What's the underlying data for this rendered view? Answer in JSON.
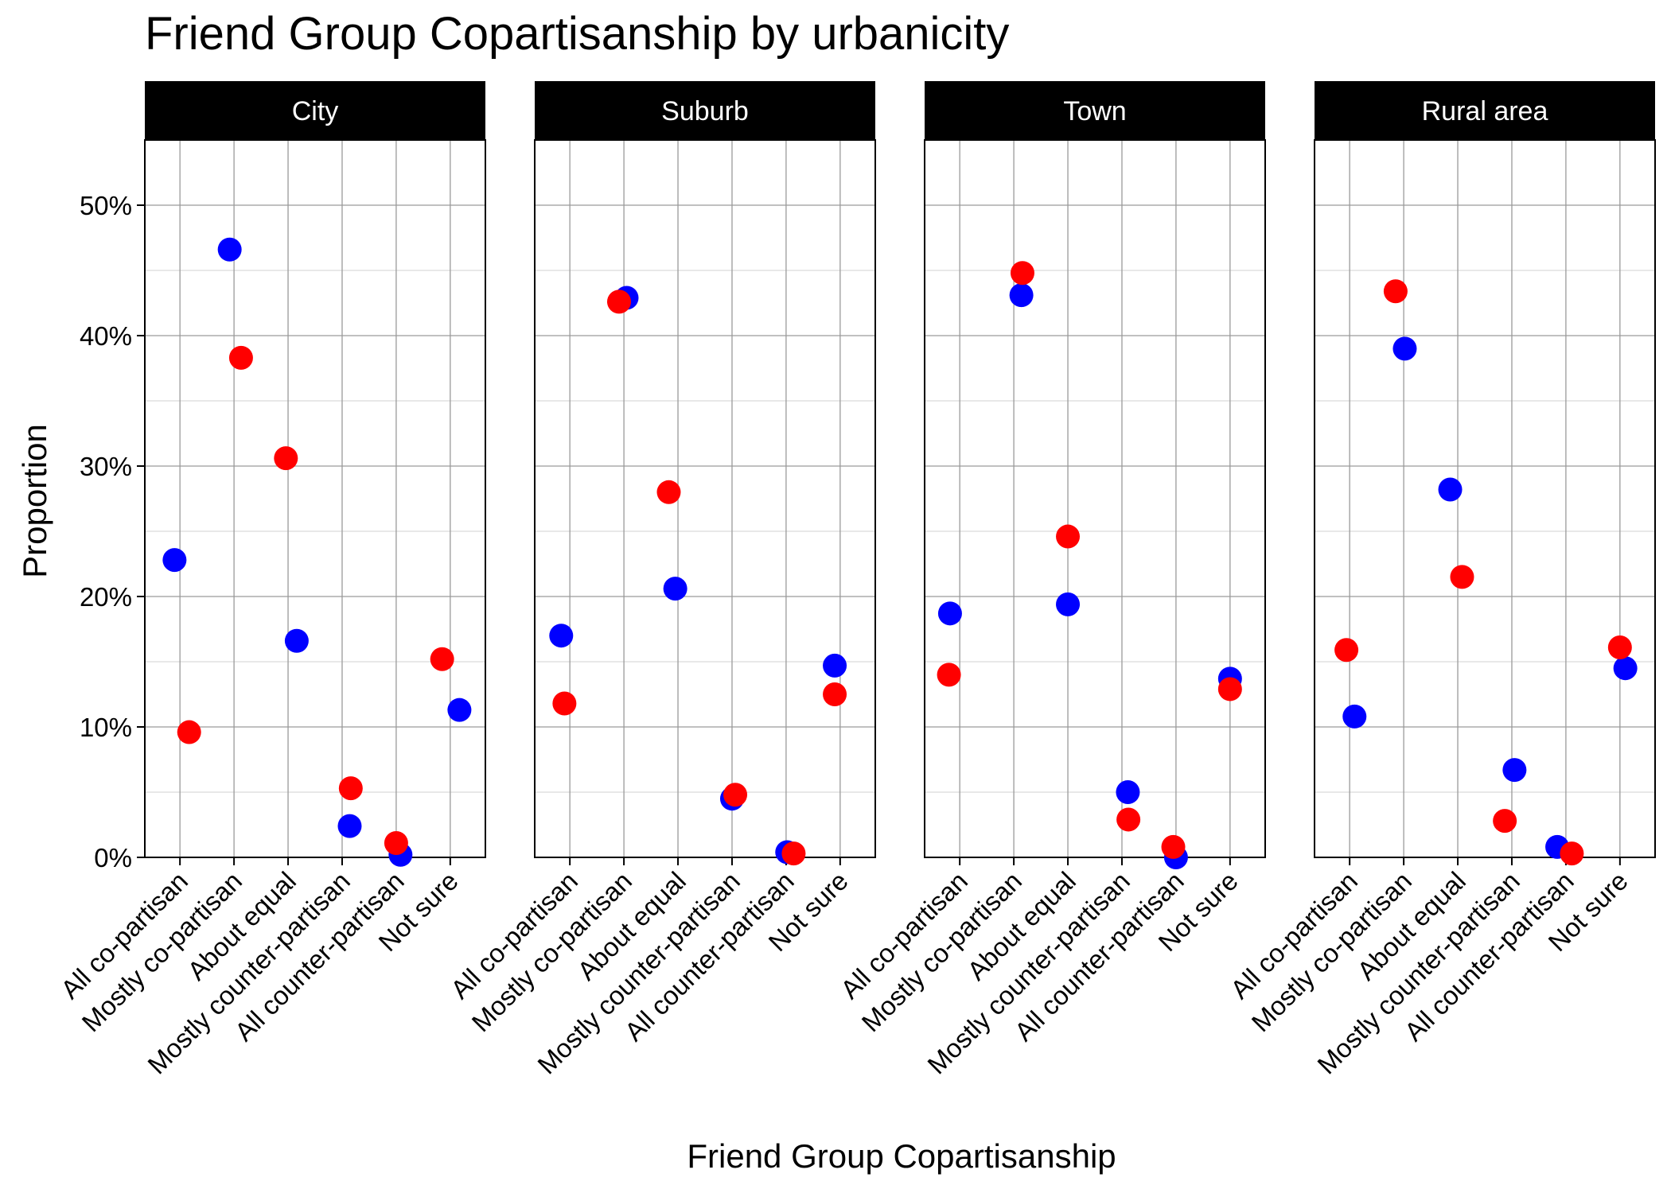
{
  "chart_data": {
    "type": "scatter",
    "title": "Friend Group Copartisanship by urbanicity",
    "xlabel": "Friend Group Copartisanship",
    "ylabel": "Proportion",
    "ylim": [
      0,
      0.55
    ],
    "y_ticks": [
      0,
      0.1,
      0.2,
      0.3,
      0.4,
      0.5
    ],
    "y_tick_labels": [
      "0%",
      "10%",
      "20%",
      "30%",
      "40%",
      "50%"
    ],
    "grid": true,
    "legend": "none",
    "categories": [
      "All co-partisan",
      "Mostly co-partisan",
      "About equal",
      "Mostly counter-partisan",
      "All counter-partisan",
      "Not sure"
    ],
    "series_colors": [
      "#0000ff",
      "#ff0000"
    ],
    "panels": [
      {
        "label": "City",
        "series": [
          {
            "color": "#0000ff",
            "values": [
              0.228,
              0.466,
              0.166,
              0.024,
              0.002,
              0.113
            ],
            "jitter": [
              -0.1,
              -0.08,
              0.16,
              0.14,
              0.08,
              0.17
            ]
          },
          {
            "color": "#ff0000",
            "values": [
              0.096,
              0.383,
              0.306,
              0.053,
              0.011,
              0.152
            ],
            "jitter": [
              0.17,
              0.13,
              -0.04,
              0.16,
              0.0,
              -0.15
            ]
          }
        ]
      },
      {
        "label": "Suburb",
        "series": [
          {
            "color": "#0000ff",
            "values": [
              0.17,
              0.429,
              0.206,
              0.045,
              0.004,
              0.147
            ],
            "jitter": [
              -0.16,
              0.05,
              -0.05,
              0.0,
              0.02,
              -0.1
            ]
          },
          {
            "color": "#ff0000",
            "values": [
              0.118,
              0.426,
              0.28,
              0.048,
              0.003,
              0.125
            ],
            "jitter": [
              -0.1,
              -0.09,
              -0.17,
              0.06,
              0.14,
              -0.1
            ]
          }
        ]
      },
      {
        "label": "Town",
        "series": [
          {
            "color": "#0000ff",
            "values": [
              0.187,
              0.431,
              0.194,
              0.05,
              0.0,
              0.137
            ],
            "jitter": [
              -0.18,
              0.14,
              0.0,
              0.11,
              0.0,
              0.0
            ]
          },
          {
            "color": "#ff0000",
            "values": [
              0.14,
              0.448,
              0.246,
              0.029,
              0.008,
              0.129
            ],
            "jitter": [
              -0.2,
              0.16,
              0.0,
              0.12,
              -0.05,
              0.0
            ]
          }
        ]
      },
      {
        "label": "Rural area",
        "series": [
          {
            "color": "#0000ff",
            "values": [
              0.108,
              0.39,
              0.282,
              0.067,
              0.008,
              0.145
            ],
            "jitter": [
              0.09,
              0.02,
              -0.14,
              0.05,
              -0.16,
              0.1
            ]
          },
          {
            "color": "#ff0000",
            "values": [
              0.159,
              0.434,
              0.215,
              0.028,
              0.003,
              0.161
            ],
            "jitter": [
              -0.06,
              -0.15,
              0.08,
              -0.13,
              0.11,
              0.0
            ]
          }
        ]
      }
    ]
  }
}
